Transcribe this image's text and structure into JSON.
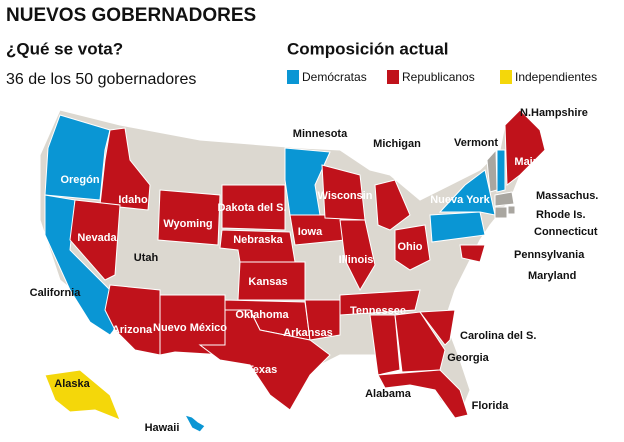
{
  "header": {
    "title": "NUEVOS GOBERNADORES",
    "question": "¿Qué se vota?",
    "subtitle": "36 de los 50 gobernadores"
  },
  "legend": {
    "title": "Composición actual",
    "items": [
      {
        "label": "Demócratas",
        "color": "#0a96d4"
      },
      {
        "label": "Republicanos",
        "color": "#c0121b"
      },
      {
        "label": "Independientes",
        "color": "#f4d70a"
      }
    ]
  },
  "states": [
    {
      "label": "Oregón",
      "color": "#0a96d4"
    },
    {
      "label": "California",
      "color": "#0a96d4"
    },
    {
      "label": "Idaho",
      "color": "#c0121b"
    },
    {
      "label": "Nevada",
      "color": "#c0121b"
    },
    {
      "label": "Utah",
      "color": "#dcd8d0"
    },
    {
      "label": "Arizona",
      "color": "#c0121b"
    },
    {
      "label": "Wyoming",
      "color": "#c0121b"
    },
    {
      "label": "Dakota del S.",
      "color": "#c0121b"
    },
    {
      "label": "Nebraska",
      "color": "#c0121b"
    },
    {
      "label": "Kansas",
      "color": "#c0121b"
    },
    {
      "label": "Nuevo México",
      "color": "#c0121b"
    },
    {
      "label": "Oklahoma",
      "color": "#c0121b"
    },
    {
      "label": "Texas",
      "color": "#c0121b"
    },
    {
      "label": "Minnesota",
      "color": "#0a96d4"
    },
    {
      "label": "Iowa",
      "color": "#c0121b"
    },
    {
      "label": "Wisconsin",
      "color": "#c0121b"
    },
    {
      "label": "Illinois",
      "color": "#c0121b"
    },
    {
      "label": "Michigan",
      "color": "#c0121b"
    },
    {
      "label": "Arkansas",
      "color": "#c0121b"
    },
    {
      "label": "Tennessee",
      "color": "#c0121b"
    },
    {
      "label": "Ohio",
      "color": "#c0121b"
    },
    {
      "label": "Alabama",
      "color": "#c0121b"
    },
    {
      "label": "Georgia",
      "color": "#c0121b"
    },
    {
      "label": "Florida",
      "color": "#c0121b"
    },
    {
      "label": "Carolina del S.",
      "color": "#c0121b"
    },
    {
      "label": "Pennsylvania",
      "color": "#0a96d4"
    },
    {
      "label": "Nueva York",
      "color": "#0a96d4"
    },
    {
      "label": "Vermont",
      "color": "#a9a6a0"
    },
    {
      "label": "N.Hampshire",
      "color": "#0a96d4"
    },
    {
      "label": "Maine",
      "color": "#c0121b"
    },
    {
      "label": "Massachus.",
      "color": "#a9a6a0"
    },
    {
      "label": "Rhode Is.",
      "color": "#a9a6a0"
    },
    {
      "label": "Connecticut",
      "color": "#a9a6a0"
    },
    {
      "label": "Maryland",
      "color": "#c0121b"
    },
    {
      "label": "Alaska",
      "color": "#f4d70a"
    },
    {
      "label": "Hawaii",
      "color": "#0a96d4"
    }
  ]
}
